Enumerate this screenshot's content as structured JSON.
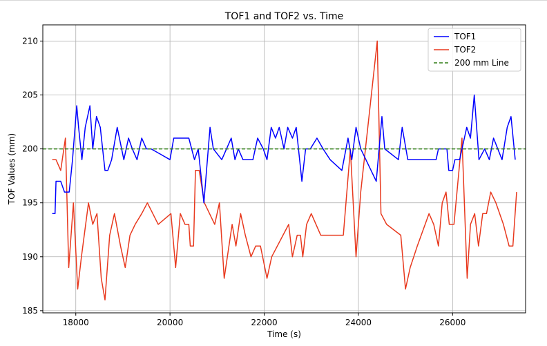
{
  "chart_data": {
    "type": "line",
    "title": "TOF1 and TOF2 vs. Time",
    "xlabel": "Time (s)",
    "ylabel": "TOF Values (mm)",
    "xlim": [
      17300,
      27550
    ],
    "ylim": [
      184.8,
      211.5
    ],
    "xticks": [
      18000,
      20000,
      22000,
      24000,
      26000
    ],
    "yticks": [
      185,
      190,
      195,
      200,
      205,
      210
    ],
    "grid": true,
    "legend_position": "upper-right",
    "series": [
      {
        "name": "TOF1",
        "color": "#0000ff",
        "x": [
          17500,
          17560,
          17580,
          17680,
          17760,
          17860,
          17930,
          18020,
          18060,
          18130,
          18200,
          18300,
          18360,
          18440,
          18520,
          18620,
          18680,
          18760,
          18880,
          19020,
          19120,
          19200,
          19300,
          19400,
          19500,
          19600,
          19800,
          20000,
          20080,
          20150,
          20400,
          20520,
          20600,
          20720,
          20850,
          20920,
          21100,
          21200,
          21300,
          21380,
          21450,
          21550,
          21650,
          21760,
          21860,
          21980,
          22060,
          22150,
          22240,
          22320,
          22420,
          22500,
          22600,
          22680,
          22800,
          22880,
          22980,
          23120,
          23250,
          23400,
          23650,
          23780,
          23860,
          23950,
          24050,
          24160,
          24380,
          24500,
          24560,
          24850,
          24930,
          25050,
          25150,
          25300,
          25650,
          25700,
          25880,
          25920,
          26000,
          26050,
          26150,
          26300,
          26380,
          26460,
          26560,
          26680,
          26780,
          26870,
          27050,
          27160,
          27240,
          27330
        ],
        "y": [
          194,
          194,
          197,
          197,
          196,
          196,
          199,
          204,
          202,
          199,
          202,
          204,
          200,
          203,
          202,
          198,
          198,
          199,
          202,
          199,
          201,
          200,
          199,
          201,
          200,
          200,
          199.5,
          199,
          201,
          201,
          201,
          199,
          200,
          195,
          202,
          200,
          199,
          200,
          201,
          199,
          200,
          199,
          199,
          199,
          201,
          200,
          199,
          202,
          201,
          202,
          200,
          202,
          201,
          202,
          197,
          200,
          200,
          201,
          200,
          199,
          198,
          201,
          199,
          202,
          200,
          199,
          197,
          203,
          200,
          199,
          202,
          199,
          199,
          199,
          199,
          200,
          200,
          198,
          198,
          199,
          199,
          202,
          201,
          205,
          199,
          200,
          199,
          201,
          199,
          202,
          203,
          199
        ]
      },
      {
        "name": "TOF2",
        "color": "#e8391e",
        "x": [
          17500,
          17580,
          17680,
          17780,
          17850,
          17950,
          18040,
          18120,
          18270,
          18360,
          18450,
          18540,
          18620,
          18720,
          18820,
          18950,
          19050,
          19150,
          19260,
          19400,
          19520,
          19750,
          20020,
          20120,
          20220,
          20320,
          20400,
          20430,
          20500,
          20540,
          20620,
          20730,
          20950,
          21050,
          21150,
          21320,
          21400,
          21500,
          21600,
          21720,
          21820,
          21920,
          22060,
          22160,
          22520,
          22600,
          22700,
          22770,
          22820,
          22900,
          23000,
          23200,
          23680,
          23830,
          23950,
          24050,
          24400,
          24480,
          24600,
          24900,
          25000,
          25100,
          25250,
          25500,
          25600,
          25700,
          25780,
          25860,
          25930,
          26030,
          26200,
          26310,
          26380,
          26470,
          26550,
          26640,
          26720,
          26810,
          26920,
          27080,
          27200,
          27280,
          27360
        ],
        "y": [
          199,
          199,
          198,
          201,
          189,
          195,
          187,
          190,
          195,
          193,
          194,
          188,
          186,
          192,
          194,
          191,
          189,
          192,
          193,
          194,
          195,
          193,
          194,
          189,
          194,
          193,
          193,
          191,
          191,
          198,
          198,
          195,
          193,
          195,
          188,
          193,
          191,
          194,
          192,
          190,
          191,
          191,
          188,
          190,
          193,
          190,
          192,
          192,
          190,
          193,
          194,
          192,
          192,
          200,
          190,
          196,
          210,
          194,
          193,
          192,
          187,
          189,
          191,
          194,
          193,
          191,
          195,
          196,
          193,
          193,
          201,
          188,
          193,
          194,
          191,
          194,
          194,
          196,
          195,
          193,
          191,
          191,
          196
        ]
      },
      {
        "name": "200 mm Line",
        "color": "#2e7d14",
        "dashed": true,
        "x": [
          17300,
          27550
        ],
        "y": [
          200,
          200
        ]
      }
    ]
  }
}
